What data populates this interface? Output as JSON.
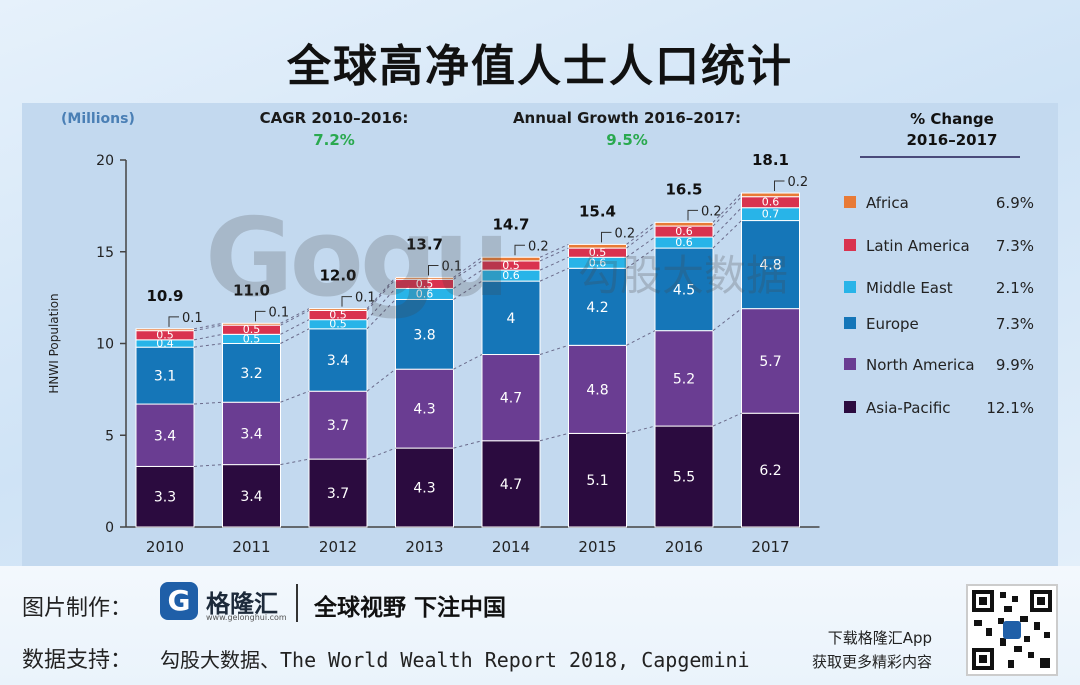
{
  "page": {
    "title": "全球高净值人士人口统计"
  },
  "watermark": {
    "brand": "Gogu",
    "cn": "勾股大数据"
  },
  "chart_data": {
    "type": "bar",
    "stacked": true,
    "units_label": "(Millions)",
    "ylabel": "HNWI Population",
    "ylim": [
      0,
      20
    ],
    "yticks": [
      0,
      5,
      10,
      15,
      20
    ],
    "categories": [
      "2010",
      "2011",
      "2012",
      "2013",
      "2014",
      "2015",
      "2016",
      "2017"
    ],
    "totals": [
      "10.9",
      "11.0",
      "12.0",
      "13.7",
      "14.7",
      "15.4",
      "16.5",
      "18.1"
    ],
    "series": [
      {
        "name": "Asia-Pacific",
        "color": "#2b0b3f",
        "values": [
          3.3,
          3.4,
          3.7,
          4.3,
          4.7,
          5.1,
          5.5,
          6.2
        ]
      },
      {
        "name": "North America",
        "color": "#6a3d92",
        "values": [
          3.4,
          3.4,
          3.7,
          4.3,
          4.7,
          4.8,
          5.2,
          5.7
        ]
      },
      {
        "name": "Europe",
        "color": "#1576b8",
        "values": [
          3.1,
          3.2,
          3.4,
          3.8,
          4.0,
          4.2,
          4.5,
          4.8
        ]
      },
      {
        "name": "Middle East",
        "color": "#28b4e8",
        "values": [
          0.4,
          0.5,
          0.5,
          0.6,
          0.6,
          0.6,
          0.6,
          0.7
        ]
      },
      {
        "name": "Latin America",
        "color": "#d9334f",
        "values": [
          0.5,
          0.5,
          0.5,
          0.5,
          0.5,
          0.5,
          0.6,
          0.6
        ]
      },
      {
        "name": "Africa",
        "color": "#e87a36",
        "values": [
          0.1,
          0.1,
          0.1,
          0.1,
          0.2,
          0.2,
          0.2,
          0.2
        ]
      }
    ],
    "cagr": {
      "label": "CAGR 2010–2016:",
      "value": "7.2%"
    },
    "annual_growth": {
      "label": "Annual Growth 2016–2017:",
      "value": "9.5%"
    },
    "legend": {
      "title": [
        "% Change",
        "2016–2017"
      ],
      "position": "right",
      "items": [
        {
          "name": "Africa",
          "color": "#e87a36",
          "change": "6.9%"
        },
        {
          "name": "Latin America",
          "color": "#d9334f",
          "change": "7.3%"
        },
        {
          "name": "Middle East",
          "color": "#28b4e8",
          "change": "2.1%"
        },
        {
          "name": "Europe",
          "color": "#1576b8",
          "change": "7.3%"
        },
        {
          "name": "North America",
          "color": "#6a3d92",
          "change": "9.9%"
        },
        {
          "name": "Asia-Pacific",
          "color": "#2b0b3f",
          "change": "12.1%"
        }
      ]
    }
  },
  "footer": {
    "credit_label": "图片制作：",
    "brand_name": "格隆汇",
    "brand_url": "www.gelonghui.com",
    "slogan": "全球视野 下注中国",
    "source_label": "数据支持：",
    "source_text": "勾股大数据、The World Wealth Report 2018, Capgemini",
    "app_promo_line1": "下载格隆汇App",
    "app_promo_line2": "获取更多精彩内容"
  }
}
